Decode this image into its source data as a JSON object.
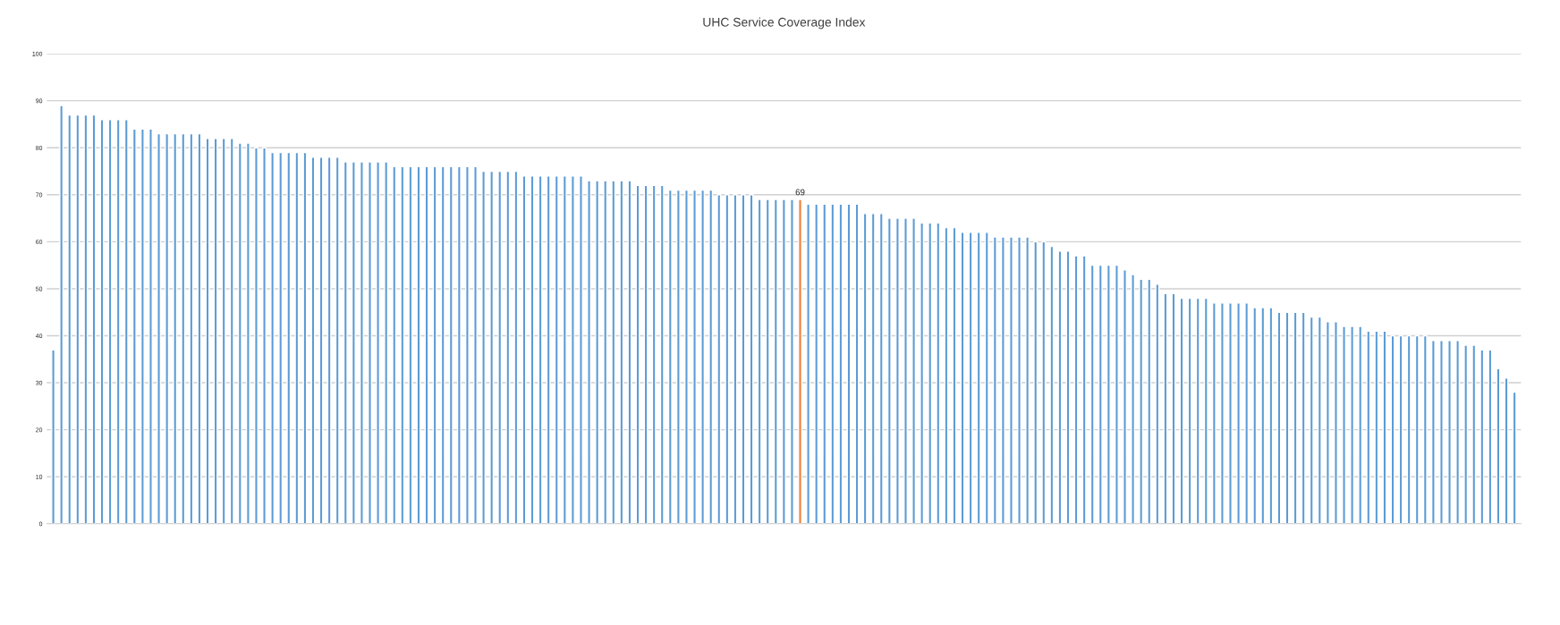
{
  "chart_data": {
    "type": "bar",
    "title": "UHC Service Coverage Index",
    "categories": [
      null,
      null,
      null,
      null,
      null,
      null,
      null,
      null,
      null,
      null,
      null,
      null,
      null,
      null,
      null,
      null,
      null,
      null,
      null,
      null,
      null,
      null,
      null,
      null,
      null,
      null,
      null,
      null,
      null,
      null,
      null,
      null,
      null,
      null,
      null,
      null,
      null,
      null,
      null,
      null,
      null,
      null,
      null,
      null,
      null,
      null,
      null,
      null,
      null,
      null,
      null,
      null,
      null,
      null,
      null,
      null,
      null,
      null,
      null,
      null,
      null,
      null,
      null,
      null,
      null,
      null,
      null,
      null,
      null,
      null,
      null,
      null,
      null,
      null,
      null,
      null,
      null,
      null,
      null,
      null,
      null,
      null,
      null,
      null,
      null,
      null,
      null,
      null,
      null,
      null,
      null,
      null,
      null,
      null,
      null,
      null,
      null,
      null,
      null,
      null,
      null,
      null,
      null,
      null,
      null,
      null,
      null,
      null,
      null,
      null,
      null,
      null,
      null,
      null,
      null,
      null,
      null,
      null,
      null,
      null,
      null,
      null,
      null,
      null,
      null,
      null,
      null,
      null,
      null,
      null,
      null,
      null,
      null,
      null,
      null,
      null,
      null,
      null,
      null,
      null,
      null,
      null,
      null,
      null,
      null,
      null,
      null,
      null,
      null,
      null,
      null,
      null,
      null,
      null,
      null,
      null,
      null,
      null,
      null,
      null,
      null,
      null,
      null,
      null,
      null,
      null,
      null,
      null,
      null,
      null,
      null,
      null,
      null,
      null,
      null,
      null,
      null,
      null,
      null,
      null,
      null
    ],
    "values": [
      37,
      89,
      87,
      87,
      87,
      87,
      86,
      86,
      86,
      86,
      84,
      84,
      84,
      83,
      83,
      83,
      83,
      83,
      83,
      82,
      82,
      82,
      82,
      81,
      81,
      80,
      80,
      79,
      79,
      79,
      79,
      79,
      78,
      78,
      78,
      78,
      77,
      77,
      77,
      77,
      77,
      77,
      76,
      76,
      76,
      76,
      76,
      76,
      76,
      76,
      76,
      76,
      76,
      75,
      75,
      75,
      75,
      75,
      74,
      74,
      74,
      74,
      74,
      74,
      74,
      74,
      73,
      73,
      73,
      73,
      73,
      73,
      72,
      72,
      72,
      72,
      71,
      71,
      71,
      71,
      71,
      71,
      70,
      70,
      70,
      70,
      70,
      69,
      69,
      69,
      69,
      69,
      69,
      68,
      68,
      68,
      68,
      68,
      68,
      68,
      66,
      66,
      66,
      65,
      65,
      65,
      65,
      64,
      64,
      64,
      63,
      63,
      62,
      62,
      62,
      62,
      61,
      61,
      61,
      61,
      61,
      60,
      60,
      59,
      58,
      58,
      57,
      57,
      55,
      55,
      55,
      55,
      54,
      53,
      52,
      52,
      51,
      49,
      49,
      48,
      48,
      48,
      48,
      47,
      47,
      47,
      47,
      47,
      46,
      46,
      46,
      45,
      45,
      45,
      45,
      44,
      44,
      43,
      43,
      42,
      42,
      42,
      41,
      41,
      41,
      40,
      40,
      40,
      40,
      40,
      39,
      39,
      39,
      39,
      38,
      38,
      37,
      37,
      33,
      31,
      28
    ],
    "colors": [
      "#5b9bd5",
      "#5b9bd5",
      "#5b9bd5",
      "#5b9bd5",
      "#5b9bd5",
      "#5b9bd5",
      "#5b9bd5",
      "#5b9bd5",
      "#5b9bd5",
      "#5b9bd5",
      "#5b9bd5",
      "#5b9bd5",
      "#5b9bd5",
      "#5b9bd5",
      "#5b9bd5",
      "#5b9bd5",
      "#5b9bd5",
      "#5b9bd5",
      "#5b9bd5",
      "#5b9bd5",
      "#5b9bd5",
      "#5b9bd5",
      "#5b9bd5",
      "#5b9bd5",
      "#5b9bd5",
      "#5b9bd5",
      "#5b9bd5",
      "#5b9bd5",
      "#5b9bd5",
      "#5b9bd5",
      "#5b9bd5",
      "#5b9bd5",
      "#5b9bd5",
      "#5b9bd5",
      "#5b9bd5",
      "#5b9bd5",
      "#5b9bd5",
      "#5b9bd5",
      "#5b9bd5",
      "#5b9bd5",
      "#5b9bd5",
      "#5b9bd5",
      "#5b9bd5",
      "#5b9bd5",
      "#5b9bd5",
      "#5b9bd5",
      "#5b9bd5",
      "#5b9bd5",
      "#5b9bd5",
      "#5b9bd5",
      "#5b9bd5",
      "#5b9bd5",
      "#5b9bd5",
      "#5b9bd5",
      "#5b9bd5",
      "#5b9bd5",
      "#5b9bd5",
      "#5b9bd5",
      "#5b9bd5",
      "#5b9bd5",
      "#5b9bd5",
      "#5b9bd5",
      "#5b9bd5",
      "#5b9bd5",
      "#5b9bd5",
      "#5b9bd5",
      "#5b9bd5",
      "#5b9bd5",
      "#5b9bd5",
      "#5b9bd5",
      "#5b9bd5",
      "#5b9bd5",
      "#5b9bd5",
      "#5b9bd5",
      "#5b9bd5",
      "#5b9bd5",
      "#5b9bd5",
      "#5b9bd5",
      "#5b9bd5",
      "#5b9bd5",
      "#5b9bd5",
      "#5b9bd5",
      "#5b9bd5",
      "#5b9bd5",
      "#5b9bd5",
      "#5b9bd5",
      "#5b9bd5",
      "#5b9bd5",
      "#5b9bd5",
      "#5b9bd5",
      "#5b9bd5",
      "#5b9bd5",
      "#ed7d31",
      "#5b9bd5",
      "#5b9bd5",
      "#5b9bd5",
      "#5b9bd5",
      "#5b9bd5",
      "#5b9bd5",
      "#5b9bd5",
      "#5b9bd5",
      "#5b9bd5",
      "#5b9bd5",
      "#5b9bd5",
      "#5b9bd5",
      "#5b9bd5",
      "#5b9bd5",
      "#5b9bd5",
      "#5b9bd5",
      "#5b9bd5",
      "#5b9bd5",
      "#5b9bd5",
      "#5b9bd5",
      "#5b9bd5",
      "#5b9bd5",
      "#5b9bd5",
      "#5b9bd5",
      "#5b9bd5",
      "#5b9bd5",
      "#5b9bd5",
      "#5b9bd5",
      "#5b9bd5",
      "#5b9bd5",
      "#5b9bd5",
      "#5b9bd5",
      "#5b9bd5",
      "#5b9bd5",
      "#5b9bd5",
      "#5b9bd5",
      "#5b9bd5",
      "#5b9bd5",
      "#5b9bd5",
      "#5b9bd5",
      "#5b9bd5",
      "#5b9bd5",
      "#5b9bd5",
      "#5b9bd5",
      "#5b9bd5",
      "#5b9bd5",
      "#5b9bd5",
      "#5b9bd5",
      "#5b9bd5",
      "#5b9bd5",
      "#5b9bd5",
      "#5b9bd5",
      "#5b9bd5",
      "#5b9bd5",
      "#5b9bd5",
      "#5b9bd5",
      "#5b9bd5",
      "#5b9bd5",
      "#5b9bd5",
      "#5b9bd5",
      "#5b9bd5",
      "#5b9bd5",
      "#5b9bd5",
      "#5b9bd5",
      "#5b9bd5",
      "#5b9bd5",
      "#5b9bd5",
      "#5b9bd5",
      "#5b9bd5",
      "#5b9bd5",
      "#5b9bd5",
      "#5b9bd5",
      "#5b9bd5",
      "#5b9bd5",
      "#5b9bd5",
      "#5b9bd5",
      "#5b9bd5",
      "#5b9bd5",
      "#5b9bd5",
      "#5b9bd5",
      "#5b9bd5",
      "#5b9bd5",
      "#5b9bd5",
      "#5b9bd5",
      "#5b9bd5",
      "#5b9bd5",
      "#5b9bd5",
      "#5b9bd5"
    ],
    "value_labels": [
      null,
      null,
      null,
      null,
      null,
      null,
      null,
      null,
      null,
      null,
      null,
      null,
      null,
      null,
      null,
      null,
      null,
      null,
      null,
      null,
      null,
      null,
      null,
      null,
      null,
      null,
      null,
      null,
      null,
      null,
      null,
      null,
      null,
      null,
      null,
      null,
      null,
      null,
      null,
      null,
      null,
      null,
      null,
      null,
      null,
      null,
      null,
      null,
      null,
      null,
      null,
      null,
      null,
      null,
      null,
      null,
      null,
      null,
      null,
      null,
      null,
      null,
      null,
      null,
      null,
      null,
      null,
      null,
      null,
      null,
      null,
      null,
      null,
      null,
      null,
      null,
      null,
      null,
      null,
      null,
      null,
      null,
      null,
      null,
      null,
      null,
      null,
      null,
      null,
      null,
      null,
      null,
      "69",
      null,
      null,
      null,
      null,
      null,
      null,
      null,
      null,
      null,
      null,
      null,
      null,
      null,
      null,
      null,
      null,
      null,
      null,
      null,
      null,
      null,
      null,
      null,
      null,
      null,
      null,
      null,
      null,
      null,
      null,
      null,
      null,
      null,
      null,
      null,
      null,
      null,
      null,
      null,
      null,
      null,
      null,
      null,
      null,
      null,
      null,
      null,
      null,
      null,
      null,
      null,
      null,
      null,
      null,
      null,
      null,
      null,
      null,
      null,
      null,
      null,
      null,
      null,
      null,
      null,
      null,
      null,
      null,
      null,
      null,
      null,
      null,
      null,
      null,
      null,
      null,
      null,
      null,
      null,
      null,
      null,
      null,
      null,
      null,
      null,
      null,
      null,
      null
    ],
    "ylim": [
      0,
      100
    ],
    "yticks": [
      0,
      10,
      20,
      30,
      40,
      50,
      60,
      70,
      80,
      90,
      100
    ],
    "grid": "y",
    "legend": false
  }
}
